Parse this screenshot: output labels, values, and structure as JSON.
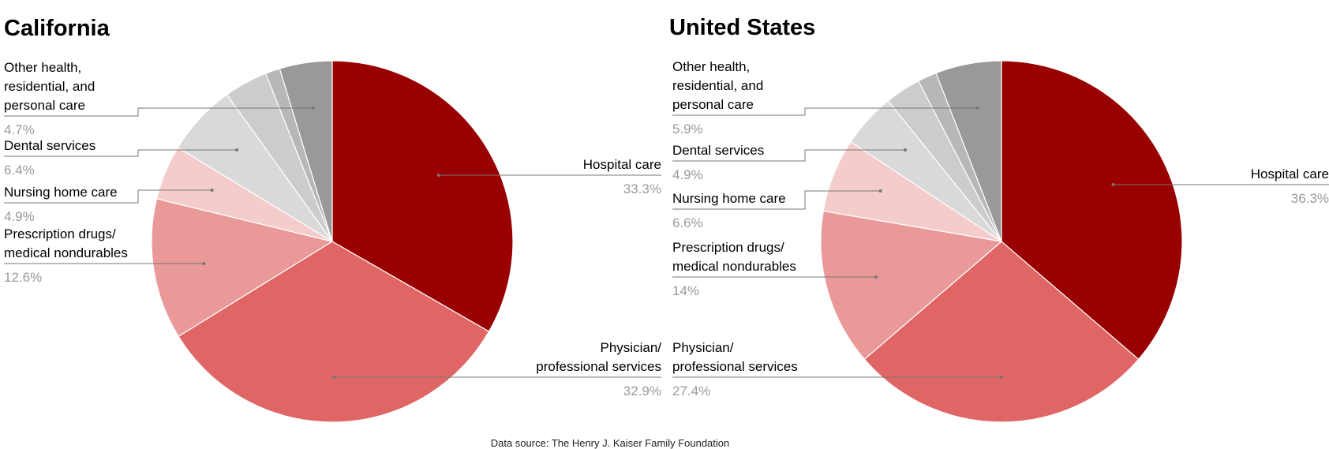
{
  "chart_data": [
    {
      "type": "pie",
      "title": "California",
      "slices": [
        {
          "label": [
            "Hospital care"
          ],
          "value": 33.3,
          "pct_text": "33.3%",
          "color": "#990000"
        },
        {
          "label": [
            "Physician/",
            "professional services"
          ],
          "value": 32.9,
          "pct_text": "32.9%",
          "color": "#e06666"
        },
        {
          "label": [
            "Prescription drugs/",
            "medical nondurables"
          ],
          "value": 12.6,
          "pct_text": "12.6%",
          "color": "#ea9999"
        },
        {
          "label": [
            "Nursing home care"
          ],
          "value": 4.9,
          "pct_text": "4.9%",
          "color": "#f4cccc"
        },
        {
          "label": [
            "Dental services"
          ],
          "value": 6.4,
          "pct_text": "6.4%",
          "color": "#d9d9d9"
        },
        {
          "label": [],
          "value": 3.9,
          "pct_text": "",
          "color": "#cccccc"
        },
        {
          "label": [],
          "value": 1.3,
          "pct_text": "",
          "color": "#b7b7b7"
        },
        {
          "label": [
            "Other health,",
            "residential, and",
            "personal care"
          ],
          "value": 4.7,
          "pct_text": "4.7%",
          "color": "#999999"
        }
      ]
    },
    {
      "type": "pie",
      "title": "United States",
      "slices": [
        {
          "label": [
            "Hospital care"
          ],
          "value": 36.3,
          "pct_text": "36.3%",
          "color": "#990000"
        },
        {
          "label": [
            "Physician/",
            "professional services"
          ],
          "value": 27.4,
          "pct_text": "27.4%",
          "color": "#e06666"
        },
        {
          "label": [
            "Prescription drugs/",
            "medical nondurables"
          ],
          "value": 14,
          "pct_text": "14%",
          "color": "#ea9999"
        },
        {
          "label": [
            "Nursing home care"
          ],
          "value": 6.6,
          "pct_text": "6.6%",
          "color": "#f4cccc"
        },
        {
          "label": [
            "Dental services"
          ],
          "value": 4.9,
          "pct_text": "4.9%",
          "color": "#d9d9d9"
        },
        {
          "label": [],
          "value": 3.2,
          "pct_text": "",
          "color": "#cccccc"
        },
        {
          "label": [],
          "value": 1.7,
          "pct_text": "",
          "color": "#b7b7b7"
        },
        {
          "label": [
            "Other health,",
            "residential, and",
            "personal care"
          ],
          "value": 5.9,
          "pct_text": "5.9%",
          "color": "#999999"
        }
      ]
    }
  ],
  "source": "Data source: The Henry J. Kaiser Family Foundation"
}
